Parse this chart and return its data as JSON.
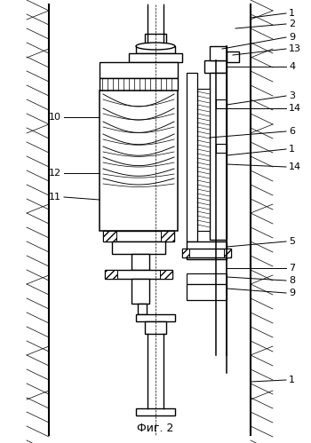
{
  "title": "Фиг. 2",
  "bg_color": "#ffffff",
  "figsize": [
    3.5,
    4.99
  ],
  "dpi": 100
}
